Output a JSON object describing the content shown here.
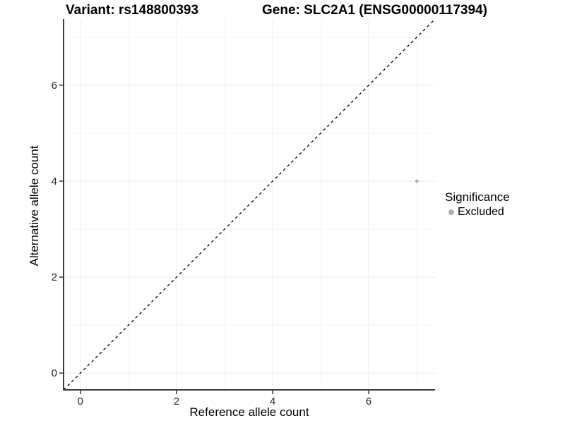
{
  "titles": {
    "variant": "Variant: rs148800393",
    "gene": "Gene: SLC2A1 (ENSG00000117394)"
  },
  "axes": {
    "x_label": "Reference allele count",
    "y_label": "Alternative allele count"
  },
  "legend": {
    "title": "Significance",
    "items": [
      {
        "label": "Excluded",
        "color": "#b0b0b0"
      }
    ]
  },
  "colors": {
    "background": "#ffffff",
    "grid_major": "#ebebeb",
    "grid_minor": "#f4f4f4",
    "axis_line": "#3c3c3c",
    "tick_mark": "#333333",
    "tick_label": "#262626",
    "identity_line": "#000000",
    "point": "#b0b0b0"
  },
  "chart_data": {
    "type": "scatter",
    "title": "Variant: rs148800393 | Gene: SLC2A1 (ENSG00000117394)",
    "xlabel": "Reference allele count",
    "ylabel": "Alternative allele count",
    "xlim": [
      -0.35,
      7.38
    ],
    "ylim": [
      -0.35,
      7.38
    ],
    "x_major_ticks": [
      0,
      2,
      4,
      6
    ],
    "y_major_ticks": [
      0,
      2,
      4,
      6
    ],
    "x_minor_ticks": [
      1,
      3,
      5,
      7
    ],
    "y_minor_ticks": [
      1,
      3,
      5,
      7
    ],
    "grid": true,
    "aspect": "equal",
    "legend_position": "right",
    "series": [
      {
        "name": "Excluded",
        "color": "#b0b0b0",
        "points": [
          {
            "x": 7,
            "y": 4
          }
        ]
      }
    ],
    "reference_line": {
      "equation": "y = x",
      "style": "dashed",
      "color": "#000000"
    }
  }
}
